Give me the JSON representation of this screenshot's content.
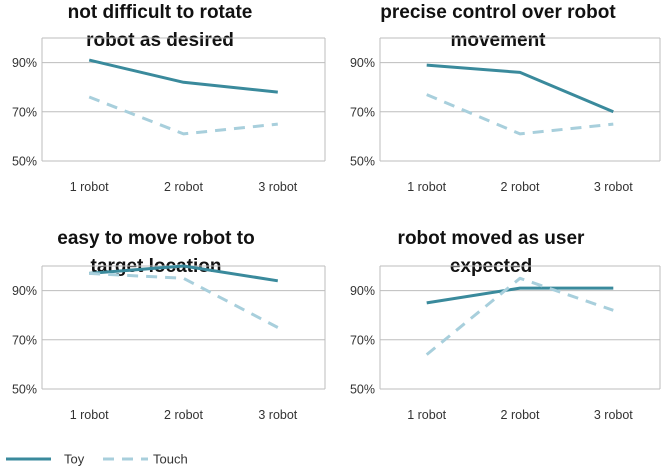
{
  "colors": {
    "toy": "#3a8a9c",
    "touch": "#a8cfdc",
    "grid": "#bdbdbd",
    "axis": "#bdbdbd"
  },
  "legend": {
    "items": [
      {
        "label": "Toy",
        "style": "solid"
      },
      {
        "label": "Touch",
        "style": "dashed"
      }
    ],
    "placement": "bottom-left"
  },
  "chart_data": [
    {
      "type": "line",
      "title": [
        "not difficult to rotate",
        "robot as desired"
      ],
      "categories": [
        "1 robot",
        "2 robot",
        "3 robot"
      ],
      "ylim": [
        50,
        100
      ],
      "yticks": [
        50,
        70,
        90
      ],
      "ytick_labels": [
        "50%",
        "70%",
        "90%"
      ],
      "grid": true,
      "series": [
        {
          "name": "Toy",
          "values": [
            91,
            82,
            78
          ]
        },
        {
          "name": "Touch",
          "values": [
            76,
            61,
            65
          ]
        }
      ]
    },
    {
      "type": "line",
      "title": [
        "precise control over robot",
        "movement"
      ],
      "categories": [
        "1 robot",
        "2 robot",
        "3 robot"
      ],
      "ylim": [
        50,
        100
      ],
      "yticks": [
        50,
        70,
        90
      ],
      "ytick_labels": [
        "50%",
        "70%",
        "90%"
      ],
      "grid": true,
      "series": [
        {
          "name": "Toy",
          "values": [
            89,
            86,
            70
          ]
        },
        {
          "name": "Touch",
          "values": [
            77,
            61,
            65
          ]
        }
      ]
    },
    {
      "type": "line",
      "title": [
        "easy to move robot to",
        "target location"
      ],
      "categories": [
        "1 robot",
        "2 robot",
        "3 robot"
      ],
      "ylim": [
        50,
        100
      ],
      "yticks": [
        50,
        70,
        90
      ],
      "ytick_labels": [
        "50%",
        "70%",
        "90%"
      ],
      "grid": true,
      "series": [
        {
          "name": "Toy",
          "values": [
            97,
            100,
            94
          ]
        },
        {
          "name": "Touch",
          "values": [
            97,
            95,
            75
          ]
        }
      ]
    },
    {
      "type": "line",
      "title": [
        "robot moved as user",
        "expected"
      ],
      "categories": [
        "1 robot",
        "2 robot",
        "3 robot"
      ],
      "ylim": [
        50,
        100
      ],
      "yticks": [
        50,
        70,
        90
      ],
      "ytick_labels": [
        "50%",
        "70%",
        "90%"
      ],
      "grid": true,
      "series": [
        {
          "name": "Toy",
          "values": [
            85,
            91,
            91
          ]
        },
        {
          "name": "Touch",
          "values": [
            64,
            95,
            82
          ]
        }
      ]
    }
  ]
}
